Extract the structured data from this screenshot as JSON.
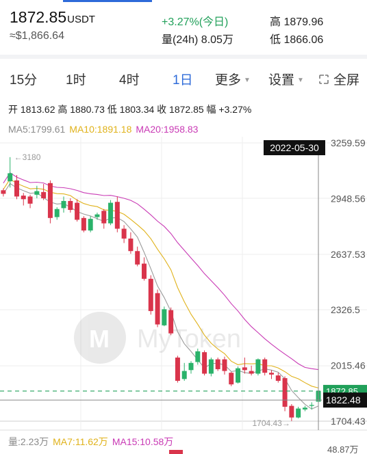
{
  "ticker": {
    "price": "1872.85",
    "unit": "USDT",
    "approx": "≈$1,866.64",
    "change": "+3.27%(今日)",
    "volume": "量(24h) 8.05万",
    "high": "高 1879.96",
    "low": "低 1866.06"
  },
  "tabs": [
    {
      "label": "15分"
    },
    {
      "label": "1时"
    },
    {
      "label": "4时"
    },
    {
      "label": "1日"
    },
    {
      "label": "更多"
    },
    {
      "label": "设置"
    },
    {
      "label": "全屏"
    }
  ],
  "active_tab": "1日",
  "ohlc_line": "开 1813.62 高 1880.73 低 1803.34 收 1872.85 幅 +3.27%",
  "ma": {
    "ma5": "MA5:1799.61",
    "ma10": "MA10:1891.18",
    "ma20": "MA20:1958.83"
  },
  "watermark": "MyToken",
  "chart_data": {
    "type": "candlestick",
    "y_ticks": [
      "3259.59",
      "2948.56",
      "2637.53",
      "2326.5",
      "2015.46",
      "1704.43"
    ],
    "current_price_label": "1872.85",
    "crosshair_price_label": "1822.48",
    "crosshair_date_label": "2022-05-30",
    "max_annotation": "←3180",
    "min_annotation": "1704.43→",
    "ylim": [
      1704.43,
      3259.59
    ],
    "candles": [
      {
        "o": 2995,
        "h": 3005,
        "l": 2960,
        "c": 2975
      },
      {
        "o": 3045,
        "h": 3180,
        "l": 3010,
        "c": 3090
      },
      {
        "o": 3050,
        "h": 3080,
        "l": 2945,
        "c": 2960
      },
      {
        "o": 2965,
        "h": 2980,
        "l": 2910,
        "c": 2945
      },
      {
        "o": 2960,
        "h": 2970,
        "l": 2895,
        "c": 2920
      },
      {
        "o": 2970,
        "h": 3020,
        "l": 2950,
        "c": 2990
      },
      {
        "o": 2985,
        "h": 3030,
        "l": 2940,
        "c": 2950
      },
      {
        "o": 3035,
        "h": 3050,
        "l": 2810,
        "c": 2840
      },
      {
        "o": 2845,
        "h": 2900,
        "l": 2830,
        "c": 2890
      },
      {
        "o": 2895,
        "h": 2960,
        "l": 2870,
        "c": 2935
      },
      {
        "o": 2935,
        "h": 2950,
        "l": 2870,
        "c": 2885
      },
      {
        "o": 2925,
        "h": 2945,
        "l": 2820,
        "c": 2830
      },
      {
        "o": 2840,
        "h": 2850,
        "l": 2760,
        "c": 2770
      },
      {
        "o": 2770,
        "h": 2850,
        "l": 2760,
        "c": 2835
      },
      {
        "o": 2845,
        "h": 2870,
        "l": 2830,
        "c": 2860
      },
      {
        "o": 2880,
        "h": 2890,
        "l": 2780,
        "c": 2810
      },
      {
        "o": 2810,
        "h": 2940,
        "l": 2800,
        "c": 2925
      },
      {
        "o": 2930,
        "h": 2960,
        "l": 2760,
        "c": 2780
      },
      {
        "o": 2780,
        "h": 2800,
        "l": 2700,
        "c": 2725
      },
      {
        "o": 2725,
        "h": 2760,
        "l": 2640,
        "c": 2655
      },
      {
        "o": 2655,
        "h": 2680,
        "l": 2570,
        "c": 2580
      },
      {
        "o": 2585,
        "h": 2620,
        "l": 2490,
        "c": 2500
      },
      {
        "o": 2500,
        "h": 2520,
        "l": 2300,
        "c": 2320
      },
      {
        "o": 2420,
        "h": 2440,
        "l": 2230,
        "c": 2245
      },
      {
        "o": 2240,
        "h": 2345,
        "l": 2235,
        "c": 2330
      },
      {
        "o": 2325,
        "h": 2340,
        "l": 2185,
        "c": 2195
      },
      {
        "o": 2060,
        "h": 2070,
        "l": 1920,
        "c": 1930
      },
      {
        "o": 1940,
        "h": 2030,
        "l": 1930,
        "c": 1985
      },
      {
        "o": 1990,
        "h": 2040,
        "l": 1970,
        "c": 2030
      },
      {
        "o": 2035,
        "h": 2110,
        "l": 2020,
        "c": 2095
      },
      {
        "o": 2090,
        "h": 2100,
        "l": 1960,
        "c": 1970
      },
      {
        "o": 1970,
        "h": 2060,
        "l": 1955,
        "c": 2050
      },
      {
        "o": 2050,
        "h": 2060,
        "l": 1985,
        "c": 1995
      },
      {
        "o": 2050,
        "h": 2065,
        "l": 1965,
        "c": 1985
      },
      {
        "o": 1975,
        "h": 1980,
        "l": 1900,
        "c": 1910
      },
      {
        "o": 1920,
        "h": 2010,
        "l": 1915,
        "c": 2000
      },
      {
        "o": 2005,
        "h": 2060,
        "l": 1970,
        "c": 1990
      },
      {
        "o": 1985,
        "h": 2015,
        "l": 1960,
        "c": 1970
      },
      {
        "o": 1970,
        "h": 2055,
        "l": 1960,
        "c": 2050
      },
      {
        "o": 2050,
        "h": 2060,
        "l": 1960,
        "c": 1975
      },
      {
        "o": 1975,
        "h": 1990,
        "l": 1940,
        "c": 1965
      },
      {
        "o": 1960,
        "h": 1975,
        "l": 1920,
        "c": 1930
      },
      {
        "o": 1945,
        "h": 1955,
        "l": 1760,
        "c": 1785
      },
      {
        "o": 1790,
        "h": 1800,
        "l": 1705,
        "c": 1725
      },
      {
        "o": 1725,
        "h": 1785,
        "l": 1720,
        "c": 1775
      },
      {
        "o": 1770,
        "h": 1790,
        "l": 1760,
        "c": 1780
      },
      {
        "o": 1790,
        "h": 1810,
        "l": 1770,
        "c": 1795
      },
      {
        "o": 1813.62,
        "h": 1880.73,
        "l": 1803.34,
        "c": 1872.85
      }
    ]
  },
  "volume_row": {
    "label": "量:2.23万",
    "ma7": "MA7:11.62万",
    "ma15": "MA15:10.58万",
    "bottom_tick": "48.87万"
  },
  "colors": {
    "up": "#2ab26a",
    "down": "#d9344b",
    "accent": "#2e6bd9",
    "ma5": "#9a9a9a",
    "ma10": "#e0b21a",
    "ma20": "#c93ab5",
    "current_line": "#21a05a"
  }
}
